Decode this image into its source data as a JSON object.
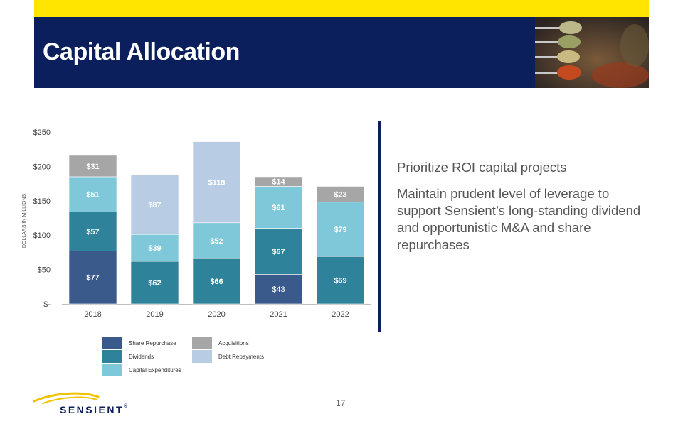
{
  "header": {
    "title": "Capital Allocation"
  },
  "bullets": [
    "Prioritize ROI capital projects",
    "Maintain prudent level of leverage to support Sensient’s long-standing dividend and opportunistic M&A and share repurchases"
  ],
  "chart_data": {
    "type": "bar",
    "stacked": true,
    "categories": [
      "2018",
      "2019",
      "2020",
      "2021",
      "2022"
    ],
    "series": [
      {
        "name": "Share Repurchase",
        "color": "#3A5A8C",
        "values": [
          77,
          0,
          0,
          43,
          0
        ],
        "labels": [
          "$77",
          "",
          "",
          "$43",
          ""
        ]
      },
      {
        "name": "Dividends",
        "color": "#2E8299",
        "values": [
          57,
          62,
          66,
          67,
          69
        ],
        "labels": [
          "$57",
          "$62",
          "$66",
          "$67",
          "$69"
        ]
      },
      {
        "name": "Capital Expenditures",
        "color": "#7EC8DA",
        "values": [
          51,
          39,
          52,
          61,
          79
        ],
        "labels": [
          "$51",
          "$39",
          "$52",
          "$61",
          "$79"
        ]
      },
      {
        "name": "Acquisitions",
        "color": "#A6A6A6",
        "values": [
          31,
          0,
          0,
          14,
          23
        ],
        "labels": [
          "$31",
          "",
          "",
          "$14",
          "$23"
        ]
      },
      {
        "name": "Debt Repayments",
        "color": "#B8CCE4",
        "values": [
          0,
          87,
          118,
          0,
          0
        ],
        "labels": [
          "",
          "$87",
          "$118",
          "",
          ""
        ]
      }
    ],
    "ylabel": "DOLLARS IN MILLIONS",
    "ylim": [
      0,
      250
    ],
    "yticks": [
      0,
      50,
      100,
      150,
      200,
      250
    ],
    "ytick_labels": [
      "$-",
      "$50",
      "$100",
      "$150",
      "$200",
      "$250"
    ],
    "grid": false,
    "legend_position": "bottom"
  },
  "legend": [
    {
      "label": "Share Repurchase",
      "color": "#3A5A8C"
    },
    {
      "label": "Acquisitions",
      "color": "#A6A6A6"
    },
    {
      "label": "Dividends",
      "color": "#2E8299"
    },
    {
      "label": "Debt Repayments",
      "color": "#B8CCE4"
    },
    {
      "label": "Capital Expenditures",
      "color": "#7EC8DA"
    }
  ],
  "footer": {
    "page_number": "17",
    "logo_text": "SENSIENT",
    "logo_mark": "®"
  },
  "colors": {
    "navy": "#0B1F5C",
    "yellow": "#FFE500"
  }
}
